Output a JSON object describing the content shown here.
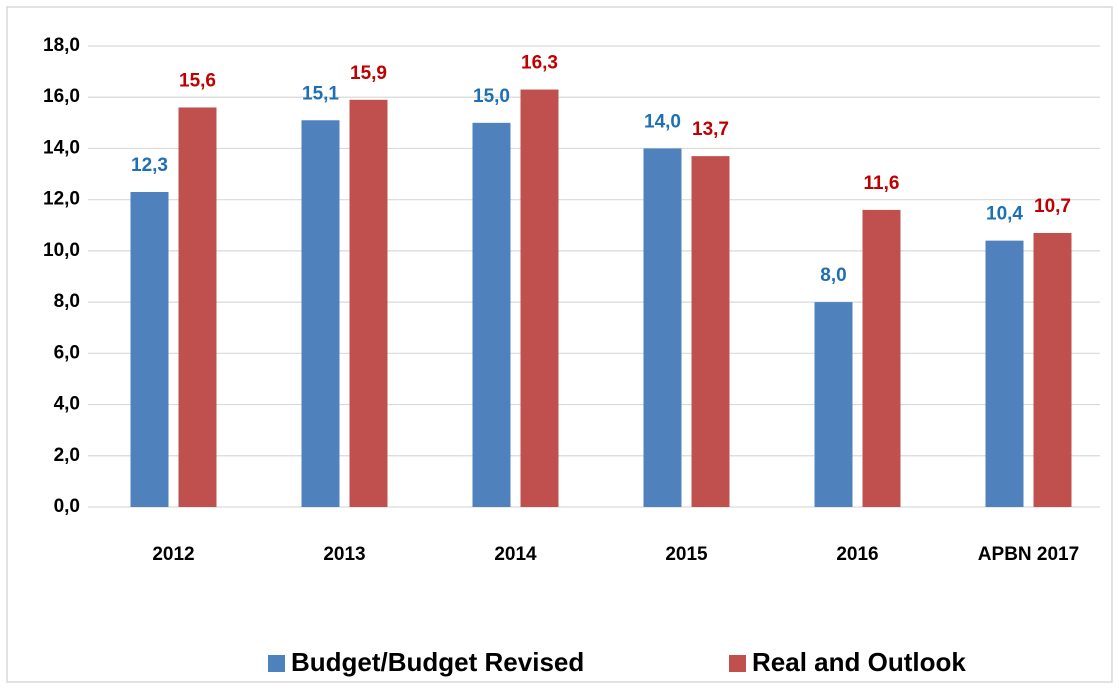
{
  "chart_data": {
    "type": "bar",
    "categories": [
      "2012",
      "2013",
      "2014",
      "2015",
      "2016",
      "APBN 2017"
    ],
    "series": [
      {
        "name": "Budget/Budget Revised",
        "color": "#4f81bd",
        "label_color": "#1f6fb5",
        "values": [
          12.3,
          15.1,
          15.0,
          14.0,
          8.0,
          10.4
        ],
        "value_labels": [
          "12,3",
          "15,1",
          "15,0",
          "14,0",
          "8,0",
          "10,4"
        ]
      },
      {
        "name": "Real and Outlook",
        "color": "#c0504d",
        "label_color": "#c00000",
        "values": [
          15.6,
          15.9,
          16.3,
          13.7,
          11.6,
          10.7
        ],
        "value_labels": [
          "15,6",
          "15,9",
          "16,3",
          "13,7",
          "11,6",
          "10,7"
        ]
      }
    ],
    "ylim": [
      0,
      18
    ],
    "yticks": [
      {
        "value": 0,
        "label": "0,0"
      },
      {
        "value": 2,
        "label": "2,0"
      },
      {
        "value": 4,
        "label": "4,0"
      },
      {
        "value": 6,
        "label": "6,0"
      },
      {
        "value": 8,
        "label": "8,0"
      },
      {
        "value": 10,
        "label": "10,0"
      },
      {
        "value": 12,
        "label": "12,0"
      },
      {
        "value": 14,
        "label": "14,0"
      },
      {
        "value": 16,
        "label": "16,0"
      },
      {
        "value": 18,
        "label": "18,0"
      }
    ],
    "grid": true,
    "legend": "bottom"
  }
}
